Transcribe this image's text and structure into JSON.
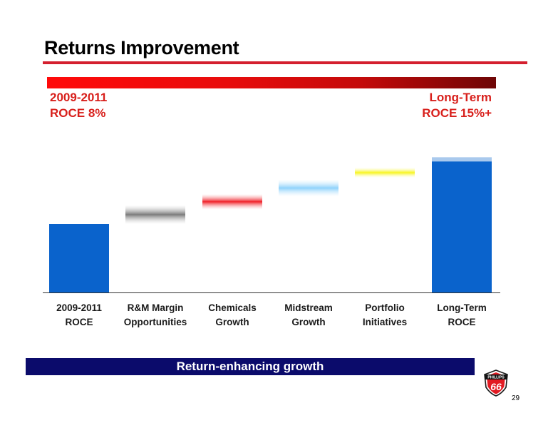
{
  "slide": {
    "title": "Returns Improvement",
    "left_label": {
      "line1": "2009-2011",
      "line2": "ROCE  8%"
    },
    "right_label": {
      "line1": "Long-Term",
      "line2": "ROCE  15%+"
    },
    "banner": "Return-enhancing growth",
    "page_number": "29",
    "logo_text_top": "PHILLIPS",
    "logo_text_main": "66",
    "colors": {
      "title_rule": "#d41f2e",
      "labels": "#d8201c",
      "banner": "#0b0b6b",
      "total_bar": "#0a63cc"
    }
  },
  "chart_data": {
    "type": "bar",
    "subtype": "waterfall",
    "categories": [
      [
        "2009-2011",
        "ROCE"
      ],
      [
        "R&M Margin",
        "Opportunities"
      ],
      [
        "Chemicals",
        "Growth"
      ],
      [
        "Midstream",
        "Growth"
      ],
      [
        "Portfolio",
        "Initiatives"
      ],
      [
        "Long-Term",
        "ROCE"
      ]
    ],
    "bars": [
      {
        "kind": "total",
        "start": 0,
        "end": 8,
        "color": "#0a63cc"
      },
      {
        "kind": "step",
        "start": 8,
        "end": 10.2,
        "color": "#7c7c7c"
      },
      {
        "kind": "step",
        "start": 9.7,
        "end": 11.5,
        "color": "#f0222a"
      },
      {
        "kind": "step",
        "start": 11.2,
        "end": 13.2,
        "color": "#8ed2fb"
      },
      {
        "kind": "step",
        "start": 13.4,
        "end": 14.6,
        "color": "#f7f51c"
      },
      {
        "kind": "total",
        "start": 0,
        "end": 15.3,
        "color": "#0a63cc"
      }
    ],
    "ylim": [
      0,
      16
    ],
    "grid": false,
    "xlabel": "",
    "ylabel": ""
  }
}
